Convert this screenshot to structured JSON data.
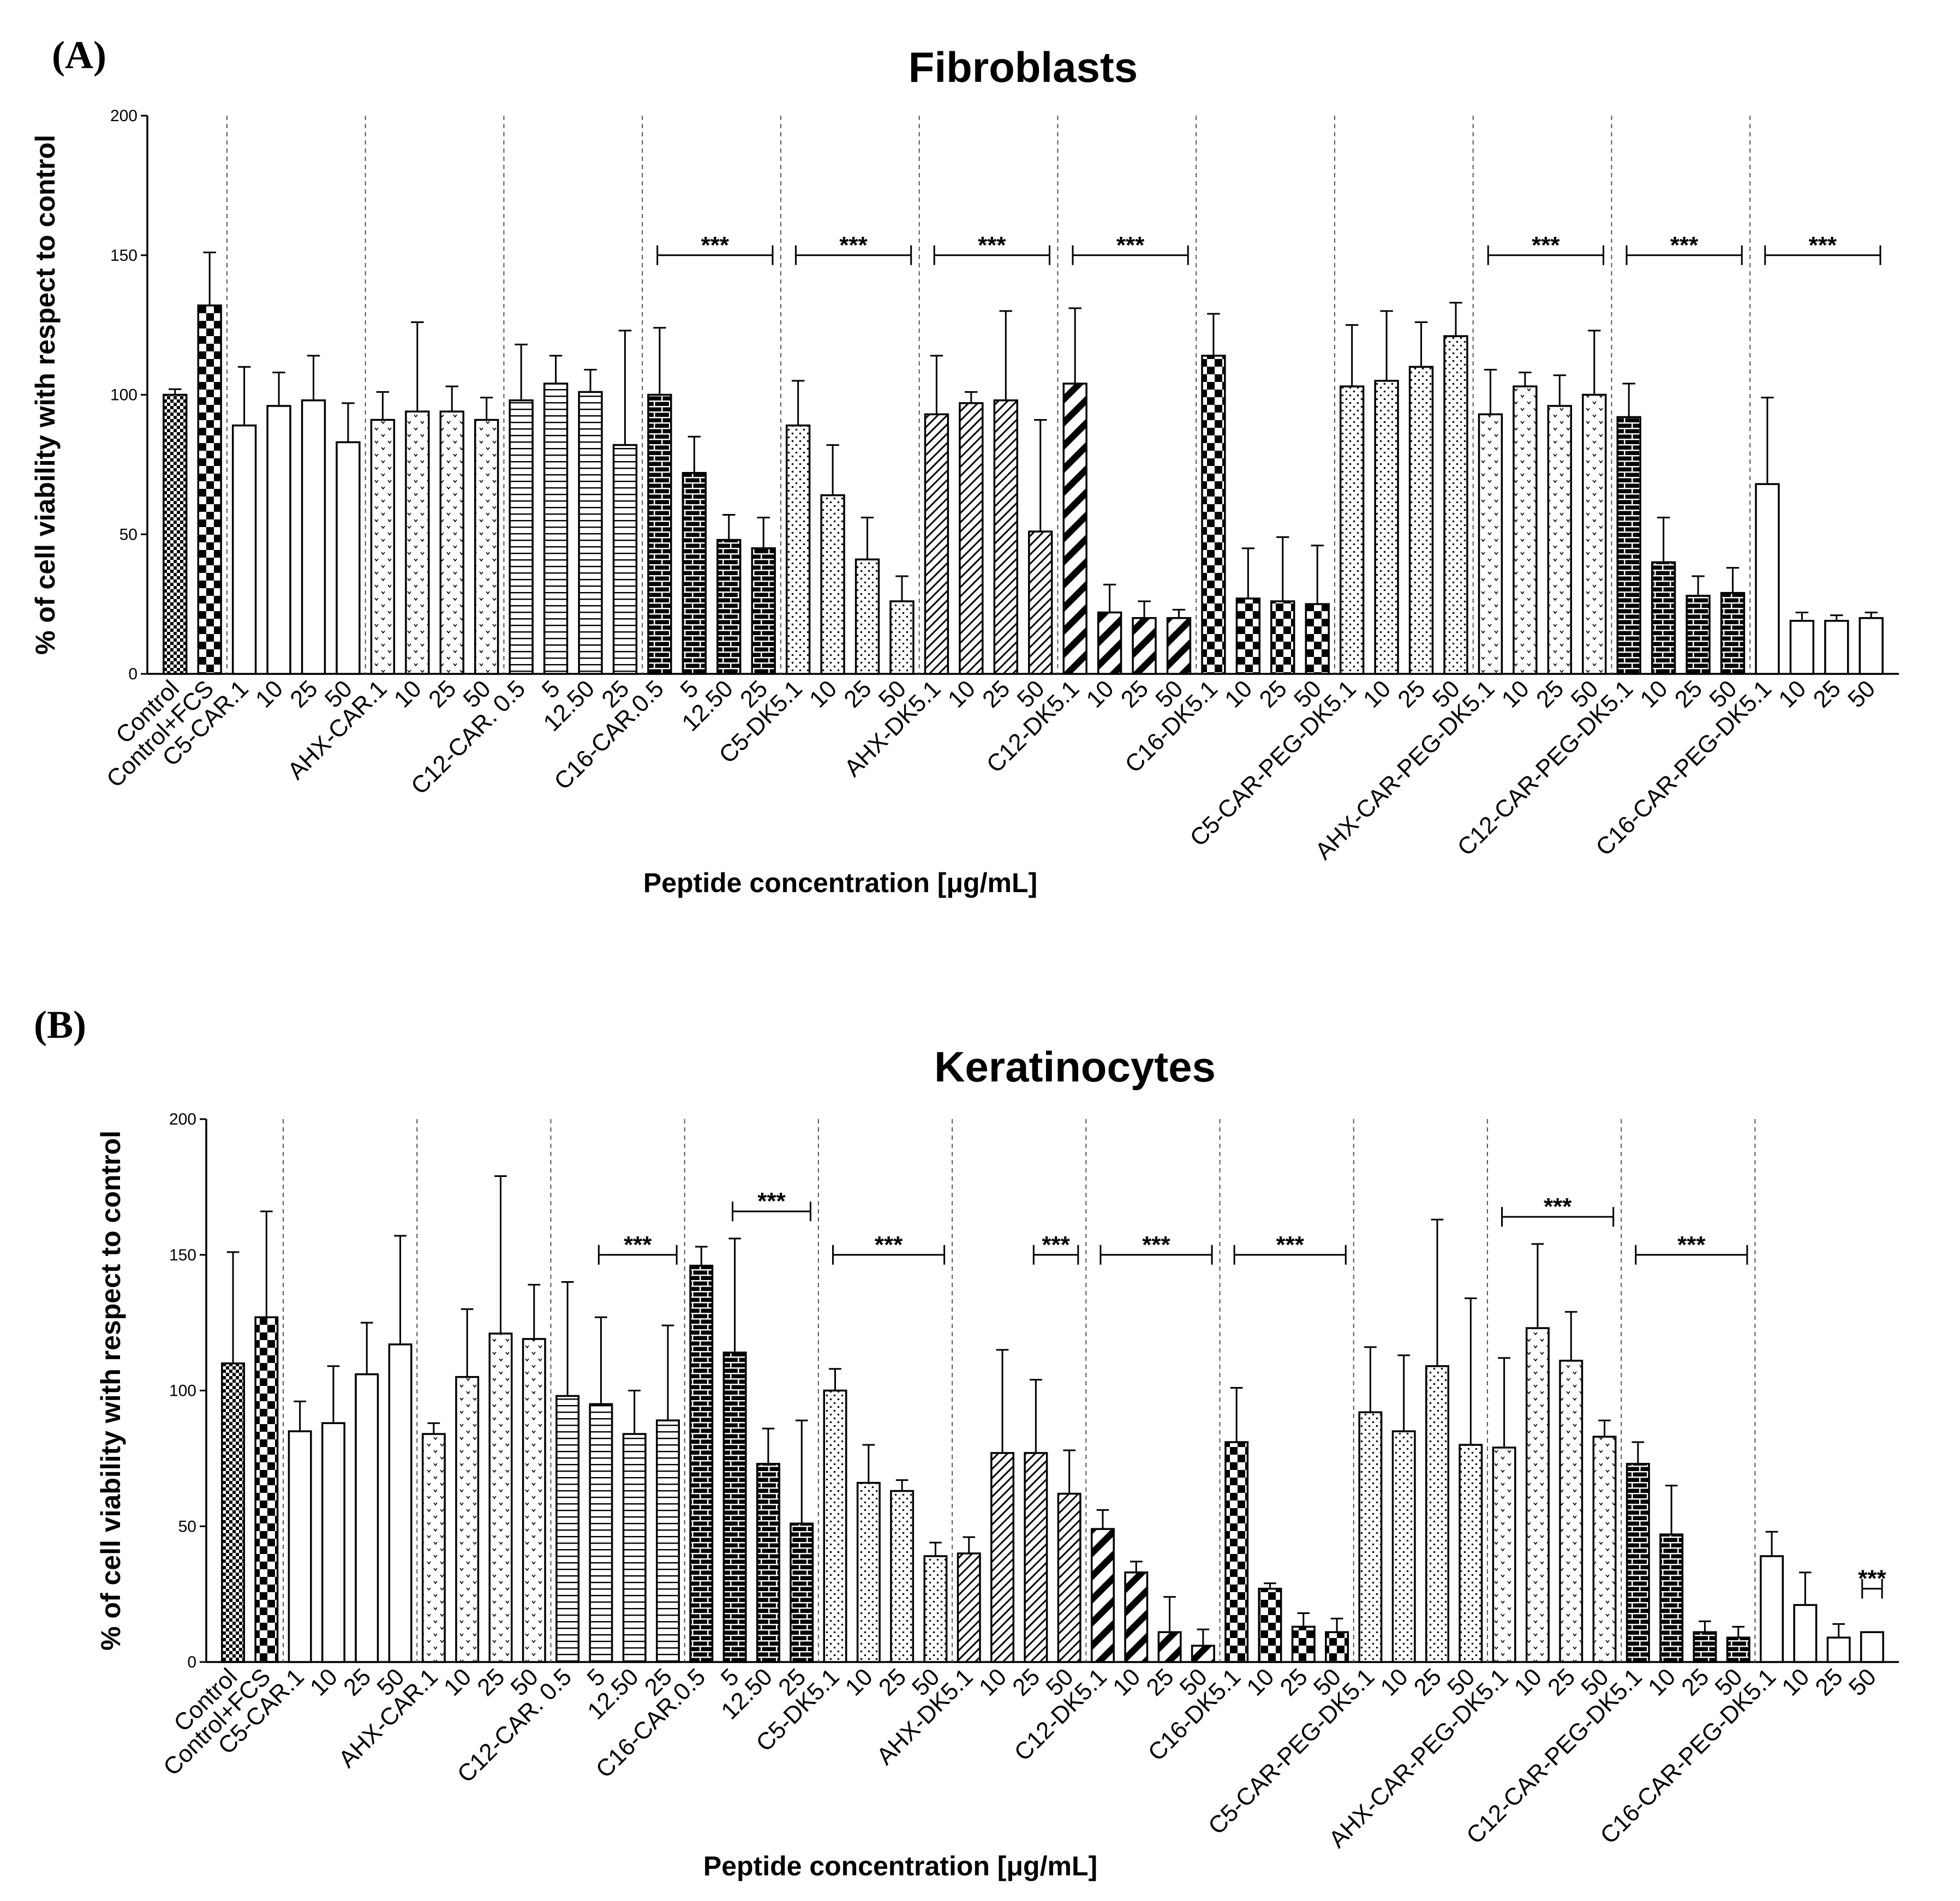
{
  "chart_data": [
    {
      "type": "bar",
      "panel_label": "(A)",
      "title": "Fibroblasts",
      "xlabel": "Peptide concentration [μg/mL]",
      "ylabel": "% of cell viability with respect to control",
      "ylim": [
        0,
        200
      ],
      "yticks": [
        "0",
        "50",
        "100",
        "150",
        "200"
      ],
      "groups": [
        {
          "name": "Control",
          "pattern": "fine-check",
          "bars": [
            {
              "label": "Control",
              "value": 100,
              "error": 2
            }
          ]
        },
        {
          "name": "Control+FCS",
          "pattern": "check",
          "bars": [
            {
              "label": "Control+FCS",
              "value": 132,
              "error": 19
            }
          ]
        },
        {
          "name": "C5-CAR",
          "pattern": "white",
          "bars": [
            {
              "label": "C5-CAR.1",
              "value": 89,
              "error": 21
            },
            {
              "label": "10",
              "value": 96,
              "error": 12
            },
            {
              "label": "25",
              "value": 98,
              "error": 16
            },
            {
              "label": "50",
              "value": 83,
              "error": 14
            }
          ]
        },
        {
          "name": "AHX-CAR",
          "pattern": "drops",
          "bars": [
            {
              "label": "AHX-CAR.1",
              "value": 91,
              "error": 10
            },
            {
              "label": "10",
              "value": 94,
              "error": 32
            },
            {
              "label": "25",
              "value": 94,
              "error": 9
            },
            {
              "label": "50",
              "value": 91,
              "error": 8
            }
          ]
        },
        {
          "name": "C12-CAR",
          "pattern": "hlines",
          "bars": [
            {
              "label": "C12-CAR. 0.5",
              "value": 98,
              "error": 20
            },
            {
              "label": "5",
              "value": 104,
              "error": 10
            },
            {
              "label": "12.50",
              "value": 101,
              "error": 8
            },
            {
              "label": "25",
              "value": 82,
              "error": 41
            }
          ]
        },
        {
          "name": "C16-CAR",
          "pattern": "brick",
          "sig": "***",
          "bars": [
            {
              "label": "C16-CAR.0.5",
              "value": 100,
              "error": 24
            },
            {
              "label": "5",
              "value": 72,
              "error": 13
            },
            {
              "label": "12.50",
              "value": 48,
              "error": 9
            },
            {
              "label": "25",
              "value": 45,
              "error": 11
            }
          ]
        },
        {
          "name": "C5-DK5",
          "pattern": "dots",
          "sig": "***",
          "bars": [
            {
              "label": "C5-DK5.1",
              "value": 89,
              "error": 16
            },
            {
              "label": "10",
              "value": 64,
              "error": 18
            },
            {
              "label": "25",
              "value": 41,
              "error": 15
            },
            {
              "label": "50",
              "value": 26,
              "error": 9
            }
          ]
        },
        {
          "name": "AHX-DK5",
          "pattern": "diag-thin",
          "sig": "***",
          "bars": [
            {
              "label": "AHX-DK5.1",
              "value": 93,
              "error": 21
            },
            {
              "label": "10",
              "value": 97,
              "error": 4
            },
            {
              "label": "25",
              "value": 98,
              "error": 32
            },
            {
              "label": "50",
              "value": 51,
              "error": 40
            }
          ]
        },
        {
          "name": "C12-DK5",
          "pattern": "diag-thick",
          "sig": "***",
          "bars": [
            {
              "label": "C12-DK5.1",
              "value": 104,
              "error": 27
            },
            {
              "label": "10",
              "value": 22,
              "error": 10
            },
            {
              "label": "25",
              "value": 20,
              "error": 6
            },
            {
              "label": "50",
              "value": 20,
              "error": 3
            }
          ]
        },
        {
          "name": "C16-DK5",
          "pattern": "check",
          "bars": [
            {
              "label": "C16-DK5.1",
              "value": 114,
              "error": 15
            },
            {
              "label": "10",
              "value": 27,
              "error": 18
            },
            {
              "label": "25",
              "value": 26,
              "error": 23
            },
            {
              "label": "50",
              "value": 25,
              "error": 21
            }
          ]
        },
        {
          "name": "C5-CAR-PEG-DK5",
          "pattern": "dots",
          "bars": [
            {
              "label": "C5-CAR-PEG-DK5.1",
              "value": 103,
              "error": 22
            },
            {
              "label": "10",
              "value": 105,
              "error": 25
            },
            {
              "label": "25",
              "value": 110,
              "error": 16
            },
            {
              "label": "50",
              "value": 121,
              "error": 12
            }
          ]
        },
        {
          "name": "AHX-CAR-PEG-DK5",
          "pattern": "drops",
          "sig": "***",
          "bars": [
            {
              "label": "AHX-CAR-PEG-DK5.1",
              "value": 93,
              "error": 16
            },
            {
              "label": "10",
              "value": 103,
              "error": 5
            },
            {
              "label": "25",
              "value": 96,
              "error": 11
            },
            {
              "label": "50",
              "value": 100,
              "error": 23
            }
          ]
        },
        {
          "name": "C12-CAR-PEG-DK5",
          "pattern": "brick",
          "sig": "***",
          "bars": [
            {
              "label": "C12-CAR-PEG-DK5.1",
              "value": 92,
              "error": 12
            },
            {
              "label": "10",
              "value": 40,
              "error": 16
            },
            {
              "label": "25",
              "value": 28,
              "error": 7
            },
            {
              "label": "50",
              "value": 29,
              "error": 9
            }
          ]
        },
        {
          "name": "C16-CAR-PEG-DK5",
          "pattern": "white",
          "sig": "***",
          "bars": [
            {
              "label": "C16-CAR-PEG-DK5.1",
              "value": 68,
              "error": 31
            },
            {
              "label": "10",
              "value": 19,
              "error": 3
            },
            {
              "label": "25",
              "value": 19,
              "error": 2
            },
            {
              "label": "50",
              "value": 20,
              "error": 2
            }
          ]
        }
      ]
    },
    {
      "type": "bar",
      "panel_label": "(B)",
      "title": "Keratinocytes",
      "xlabel": "Peptide concentration [μg/mL]",
      "ylabel": "% of cell viability with respect to control",
      "ylim": [
        0,
        200
      ],
      "yticks": [
        "0",
        "50",
        "100",
        "150",
        "200"
      ],
      "groups": [
        {
          "name": "Control",
          "pattern": "fine-check",
          "bars": [
            {
              "label": "Control",
              "value": 110,
              "error": 41
            }
          ]
        },
        {
          "name": "Control+FCS",
          "pattern": "check",
          "bars": [
            {
              "label": "Control+FCS",
              "value": 127,
              "error": 39
            }
          ]
        },
        {
          "name": "C5-CAR",
          "pattern": "white",
          "bars": [
            {
              "label": "C5-CAR.1",
              "value": 85,
              "error": 11
            },
            {
              "label": "10",
              "value": 88,
              "error": 21
            },
            {
              "label": "25",
              "value": 106,
              "error": 19
            },
            {
              "label": "50",
              "value": 117,
              "error": 40
            }
          ]
        },
        {
          "name": "AHX-CAR",
          "pattern": "drops",
          "bars": [
            {
              "label": "AHX-CAR.1",
              "value": 84,
              "error": 4
            },
            {
              "label": "10",
              "value": 105,
              "error": 25
            },
            {
              "label": "25",
              "value": 121,
              "error": 58
            },
            {
              "label": "50",
              "value": 119,
              "error": 20
            }
          ]
        },
        {
          "name": "C12-CAR",
          "pattern": "hlines",
          "sig": "***",
          "sig_bars": [
            1,
            3
          ],
          "bars": [
            {
              "label": "C12-CAR. 0.5",
              "value": 98,
              "error": 42
            },
            {
              "label": "5",
              "value": 95,
              "error": 32
            },
            {
              "label": "12.50",
              "value": 84,
              "error": 16
            },
            {
              "label": "25",
              "value": 89,
              "error": 35
            }
          ]
        },
        {
          "name": "C16-CAR",
          "pattern": "brick",
          "sig": "***",
          "sig_bars": [
            1,
            3
          ],
          "bars": [
            {
              "label": "C16-CAR.0.5",
              "value": 146,
              "error": 7
            },
            {
              "label": "5",
              "value": 114,
              "error": 42
            },
            {
              "label": "12.50",
              "value": 73,
              "error": 13
            },
            {
              "label": "25",
              "value": 51,
              "error": 38
            }
          ]
        },
        {
          "name": "C5-DK5",
          "pattern": "dots",
          "sig": "***",
          "bars": [
            {
              "label": "C5-DK5.1",
              "value": 100,
              "error": 8
            },
            {
              "label": "10",
              "value": 66,
              "error": 14
            },
            {
              "label": "25",
              "value": 63,
              "error": 4
            },
            {
              "label": "50",
              "value": 39,
              "error": 5
            }
          ]
        },
        {
          "name": "AHX-DK5",
          "pattern": "diag-thin",
          "sig": "***",
          "sig_bars": [
            2,
            3
          ],
          "bars": [
            {
              "label": "AHX-DK5.1",
              "value": 40,
              "error": 6
            },
            {
              "label": "10",
              "value": 77,
              "error": 38
            },
            {
              "label": "25",
              "value": 77,
              "error": 27
            },
            {
              "label": "50",
              "value": 62,
              "error": 16
            }
          ]
        },
        {
          "name": "C12-DK5",
          "pattern": "diag-thick",
          "sig": "***",
          "bars": [
            {
              "label": "C12-DK5.1",
              "value": 49,
              "error": 7
            },
            {
              "label": "10",
              "value": 33,
              "error": 4
            },
            {
              "label": "25",
              "value": 11,
              "error": 13
            },
            {
              "label": "50",
              "value": 6,
              "error": 6
            }
          ]
        },
        {
          "name": "C16-DK5",
          "pattern": "check",
          "sig": "***",
          "bars": [
            {
              "label": "C16-DK5.1",
              "value": 81,
              "error": 20
            },
            {
              "label": "10",
              "value": 27,
              "error": 2
            },
            {
              "label": "25",
              "value": 13,
              "error": 5
            },
            {
              "label": "50",
              "value": 11,
              "error": 5
            }
          ]
        },
        {
          "name": "C5-CAR-PEG-DK5",
          "pattern": "dots",
          "bars": [
            {
              "label": "C5-CAR-PEG-DK5.1",
              "value": 92,
              "error": 24
            },
            {
              "label": "10",
              "value": 85,
              "error": 28
            },
            {
              "label": "25",
              "value": 109,
              "error": 54
            },
            {
              "label": "50",
              "value": 80,
              "error": 54
            }
          ]
        },
        {
          "name": "AHX-CAR-PEG-DK5",
          "pattern": "drops",
          "sig": "***",
          "bars": [
            {
              "label": "AHX-CAR-PEG-DK5.1",
              "value": 79,
              "error": 33
            },
            {
              "label": "10",
              "value": 123,
              "error": 31
            },
            {
              "label": "25",
              "value": 111,
              "error": 18
            },
            {
              "label": "50",
              "value": 83,
              "error": 6
            }
          ]
        },
        {
          "name": "C12-CAR-PEG-DK5",
          "pattern": "brick",
          "sig": "***",
          "bars": [
            {
              "label": "C12-CAR-PEG-DK5.1",
              "value": 73,
              "error": 8
            },
            {
              "label": "10",
              "value": 47,
              "error": 18
            },
            {
              "label": "25",
              "value": 11,
              "error": 4
            },
            {
              "label": "50",
              "value": 9,
              "error": 4
            }
          ]
        },
        {
          "name": "C16-CAR-PEG-DK5",
          "pattern": "white",
          "sig": "***",
          "sig_bars": [
            3,
            3
          ],
          "bars": [
            {
              "label": "C16-CAR-PEG-DK5.1",
              "value": 39,
              "error": 9
            },
            {
              "label": "10",
              "value": 21,
              "error": 12
            },
            {
              "label": "25",
              "value": 9,
              "error": 5
            },
            {
              "label": "50",
              "value": 11,
              "error": 0
            }
          ]
        }
      ]
    }
  ]
}
